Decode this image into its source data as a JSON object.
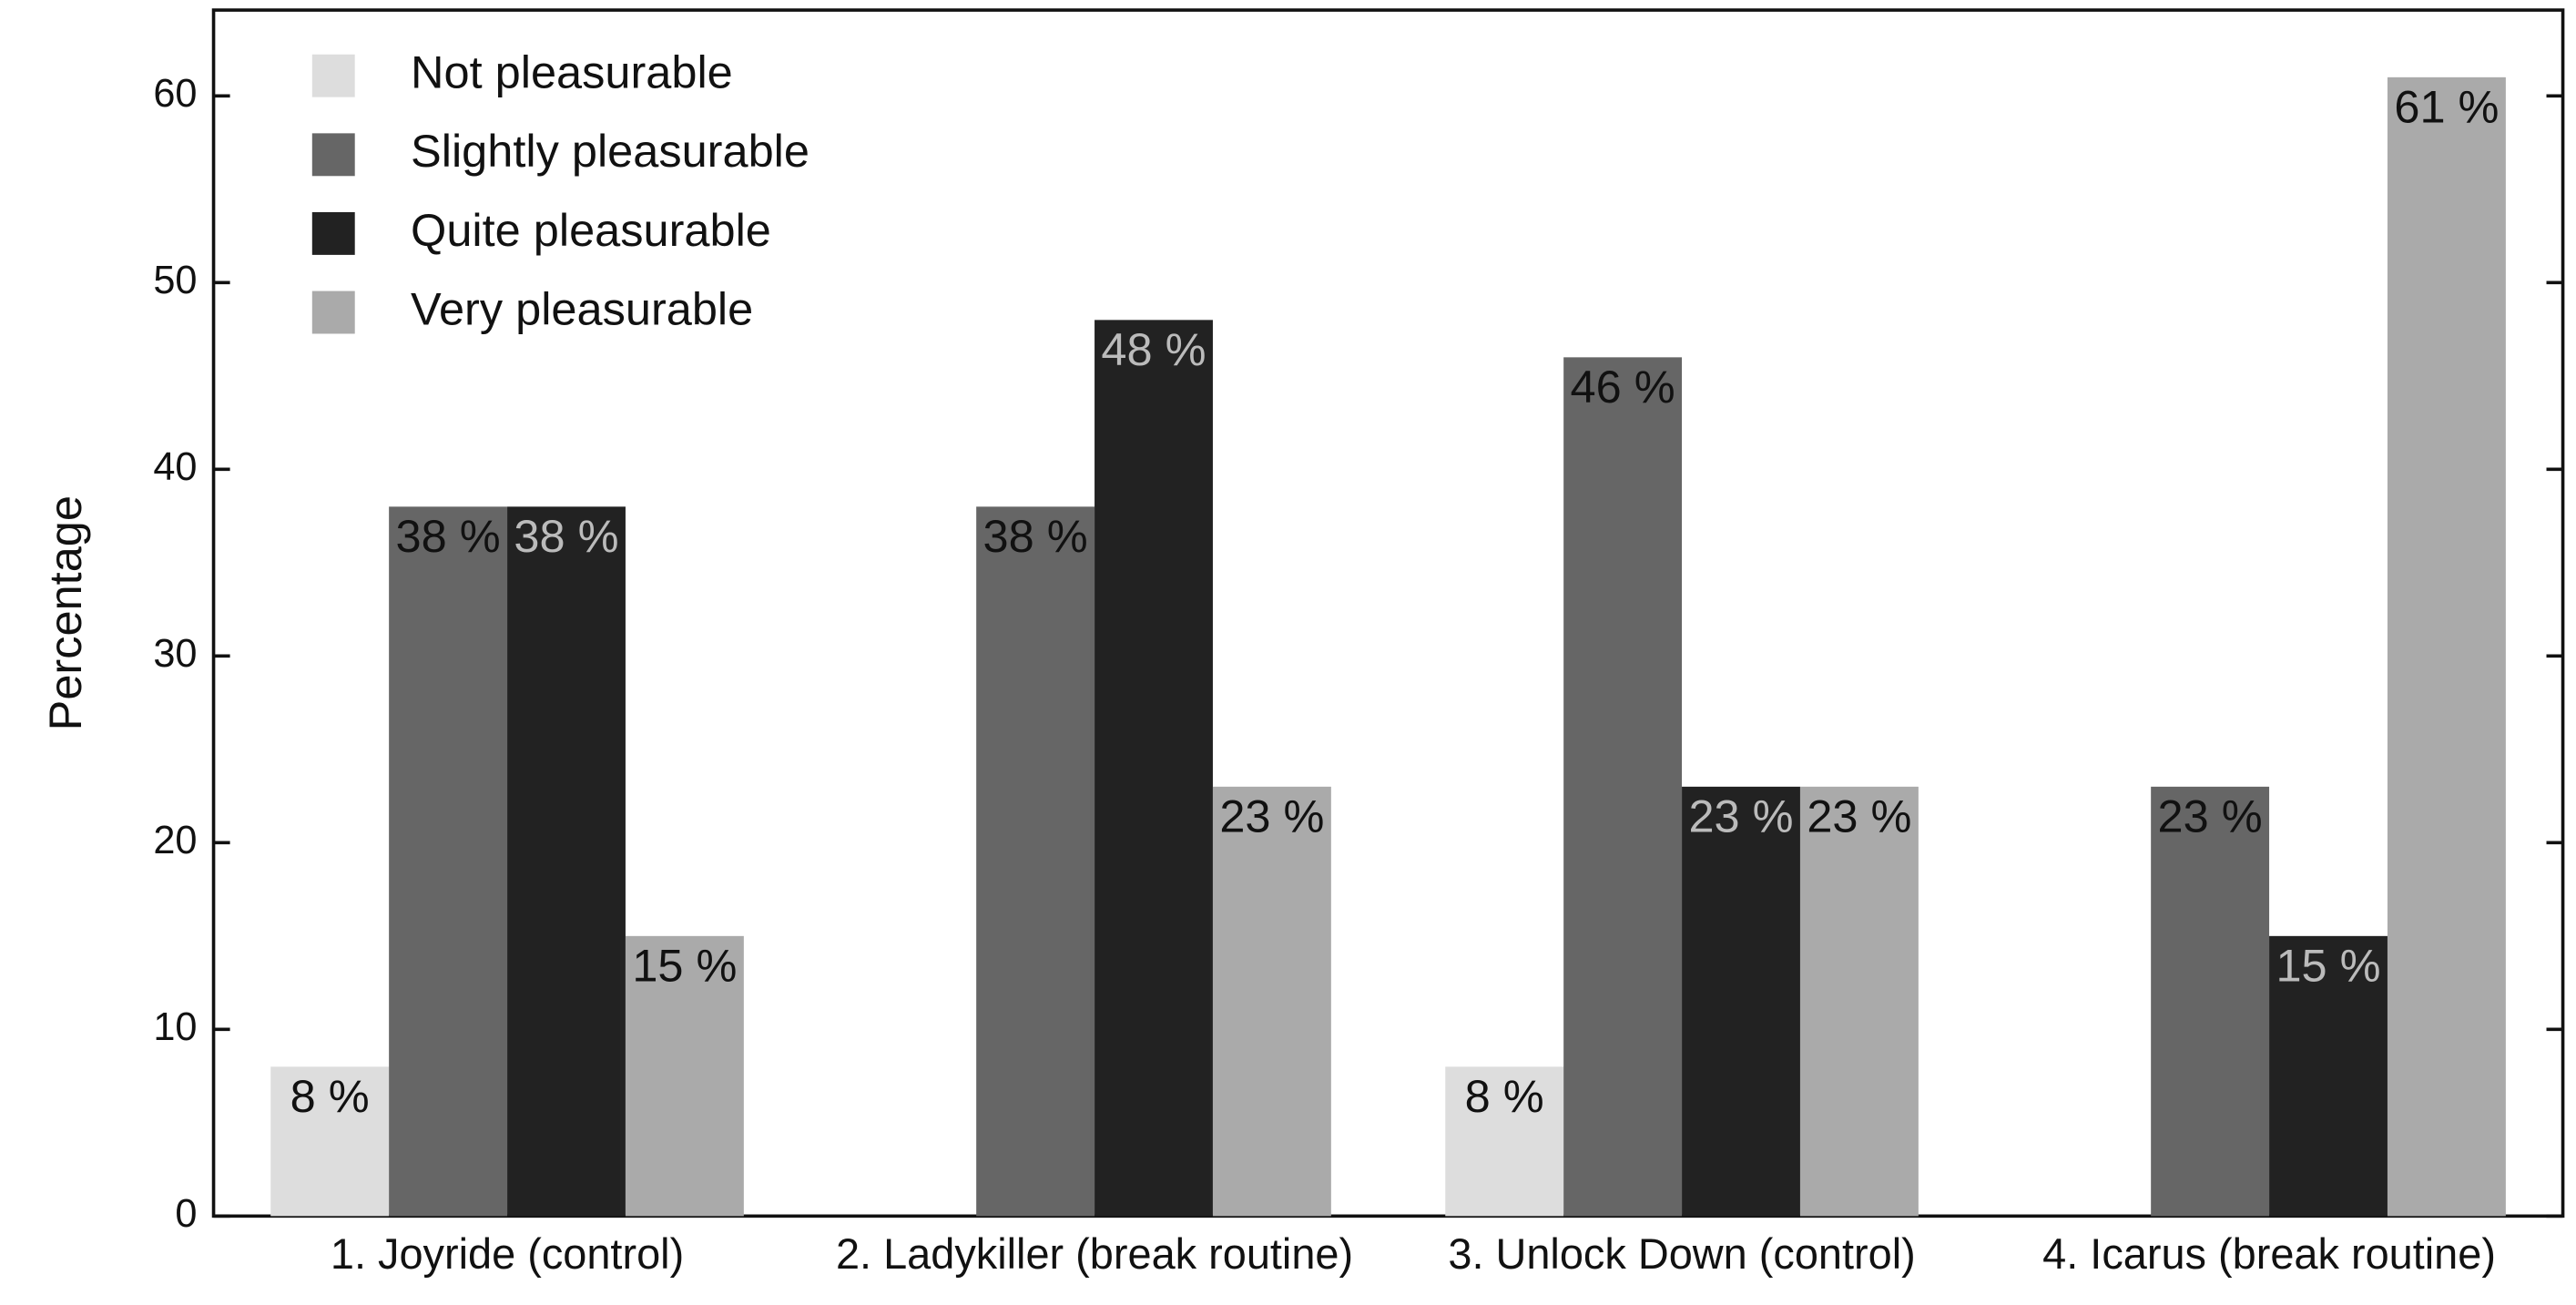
{
  "chart_data": {
    "type": "bar",
    "y_label": "Percentage",
    "categories": [
      "1. Joyride (control)",
      "2. Ladykiller (break routine)",
      "3. Unlock Down (control)",
      "4. Icarus (break routine)"
    ],
    "series": [
      {
        "name": "Not pleasurable",
        "color": "#dddddd",
        "label_color": "#111111",
        "values": [
          8,
          null,
          8,
          null
        ],
        "value_labels": [
          "8 %",
          null,
          "8 %",
          null
        ]
      },
      {
        "name": "Slightly pleasurable",
        "color": "#666666",
        "label_color": "#111111",
        "values": [
          38,
          38,
          46,
          23
        ],
        "value_labels": [
          "38 %",
          "38 %",
          "46 %",
          "23 %"
        ]
      },
      {
        "name": "Quite pleasurable",
        "color": "#222222",
        "label_color": "#bbbbbb",
        "values": [
          38,
          48,
          23,
          15
        ],
        "value_labels": [
          "38 %",
          "48 %",
          "23 %",
          "15 %"
        ]
      },
      {
        "name": "Very pleasurable",
        "color": "#aaaaaa",
        "label_color": "#111111",
        "values": [
          15,
          23,
          23,
          61
        ],
        "value_labels": [
          "15 %",
          "23 %",
          "23 %",
          "61 %"
        ]
      }
    ],
    "ylim": [
      0,
      64.6
    ],
    "yticks": [
      0,
      10,
      20,
      30,
      40,
      50,
      60
    ],
    "legend": "upper-left"
  }
}
